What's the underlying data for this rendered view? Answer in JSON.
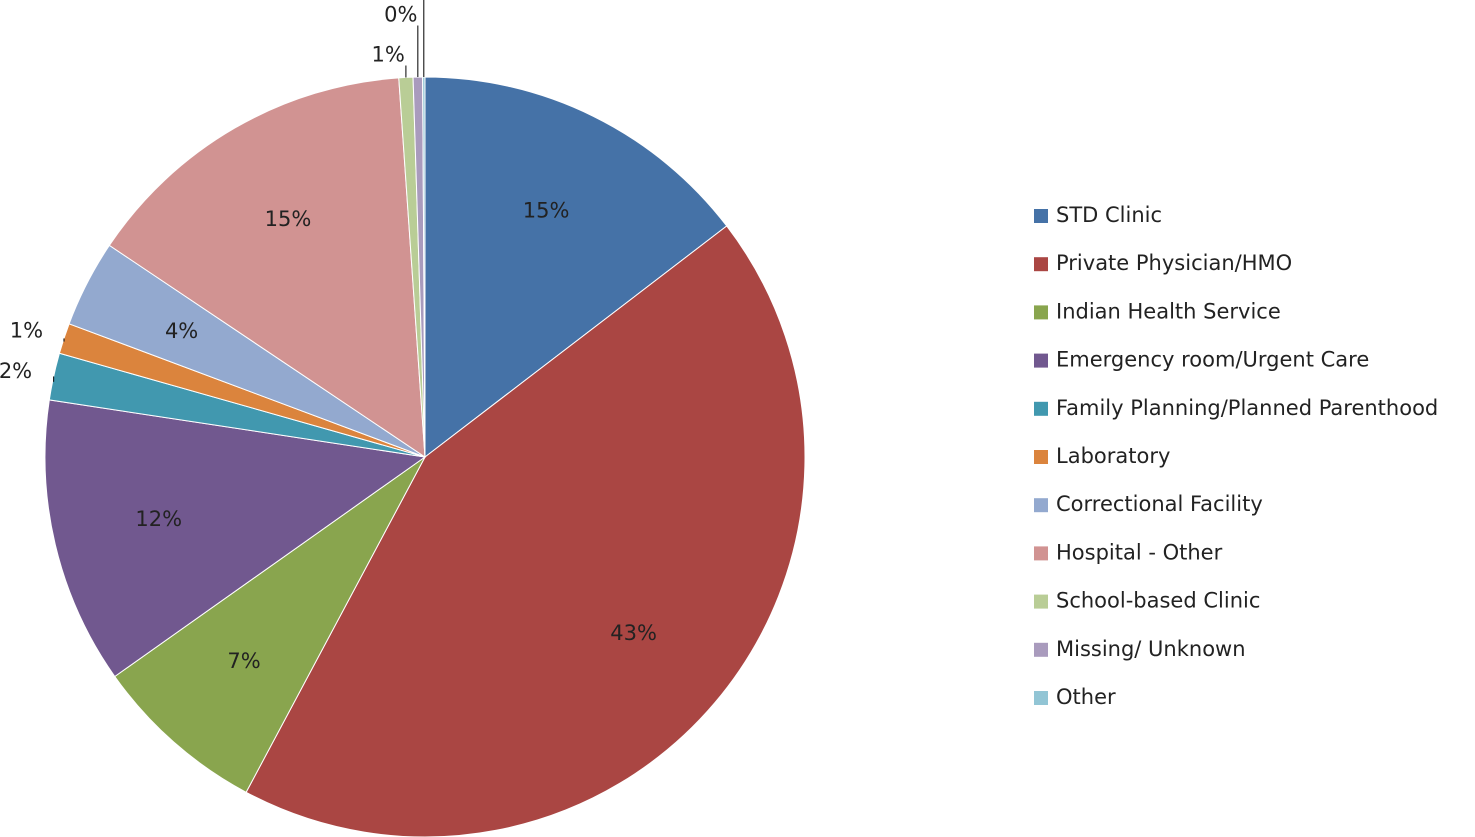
{
  "chart_data": {
    "type": "pie",
    "categories": [
      "STD Clinic",
      "Private Physician/HMO",
      "Indian Health Service",
      "Emergency room/Urgent Care",
      "Family Planning/Planned Parenthood",
      "Laboratory",
      "Correctional Facility",
      "Hospital - Other",
      "School-based Clinic",
      "Missing/ Unknown",
      "Other"
    ],
    "values": [
      14.6,
      43.2,
      7.4,
      12.2,
      2.0,
      1.3,
      3.7,
      14.5,
      0.6,
      0.4,
      0.1
    ],
    "value_labels": [
      "15%",
      "43%",
      "7%",
      "12%",
      "2%",
      "1%",
      "4%",
      "15%",
      "1%",
      "0%",
      "0%"
    ],
    "colors": [
      "#4572A7",
      "#AA4643",
      "#89A54E",
      "#71588F",
      "#4198AF",
      "#DB843D",
      "#93A9CF",
      "#D19392",
      "#B9CD96",
      "#A99BBD",
      "#92C5D5"
    ],
    "legend": "right"
  }
}
